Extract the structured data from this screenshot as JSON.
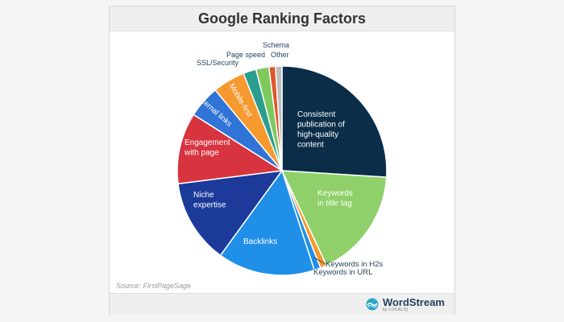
{
  "header": {
    "title": "Google Ranking Factors"
  },
  "source": "Source: FirstPageSage",
  "brand": {
    "name": "WordStream",
    "sub": "by LOCALIQ"
  },
  "colors": {
    "navy": "#0b2d48",
    "light_green": "#8fd06a",
    "sky_blue": "#1f8fe8",
    "dark_blue": "#1b3a9a",
    "red": "#d7343f",
    "mid_blue": "#2f74d6",
    "orange": "#f6992f",
    "teal": "#2a9d8f",
    "green": "#7dc95e",
    "red_orange": "#e0552c",
    "gray": "#bdbdbd"
  },
  "chart_data": {
    "type": "pie",
    "title": "Google Ranking Factors",
    "start_angle_deg": 0,
    "direction": "clockwise",
    "slices": [
      {
        "label": "Consistent publication of high-quality content",
        "value": 26,
        "color": "#0b2d48",
        "label_placement": "inside"
      },
      {
        "label": "Keywords in title tag",
        "value": 17,
        "color": "#8fd06a",
        "label_placement": "inside"
      },
      {
        "label": "Keywords in H2s",
        "value": 1,
        "color": "#f6992f",
        "label_placement": "outside"
      },
      {
        "label": "Keywords in URL",
        "value": 1,
        "color": "#1f8fe8",
        "label_placement": "outside"
      },
      {
        "label": "Backlinks",
        "value": 15,
        "color": "#1f8fe8",
        "label_placement": "inside"
      },
      {
        "label": "Niche expertise",
        "value": 13,
        "color": "#1b3a9a",
        "label_placement": "inside"
      },
      {
        "label": "Engagement with page",
        "value": 11,
        "color": "#d7343f",
        "label_placement": "inside"
      },
      {
        "label": "Internal links",
        "value": 5,
        "color": "#2f74d6",
        "label_placement": "inside"
      },
      {
        "label": "Mobile-first",
        "value": 5,
        "color": "#f6992f",
        "label_placement": "inside"
      },
      {
        "label": "SSL/Security",
        "value": 2,
        "color": "#2a9d8f",
        "label_placement": "outside"
      },
      {
        "label": "Page speed",
        "value": 2,
        "color": "#7dc95e",
        "label_placement": "outside"
      },
      {
        "label": "Schema",
        "value": 1,
        "color": "#e0552c",
        "label_placement": "outside"
      },
      {
        "label": "Other",
        "value": 1,
        "color": "#bdbdbd",
        "label_placement": "outside"
      }
    ]
  }
}
